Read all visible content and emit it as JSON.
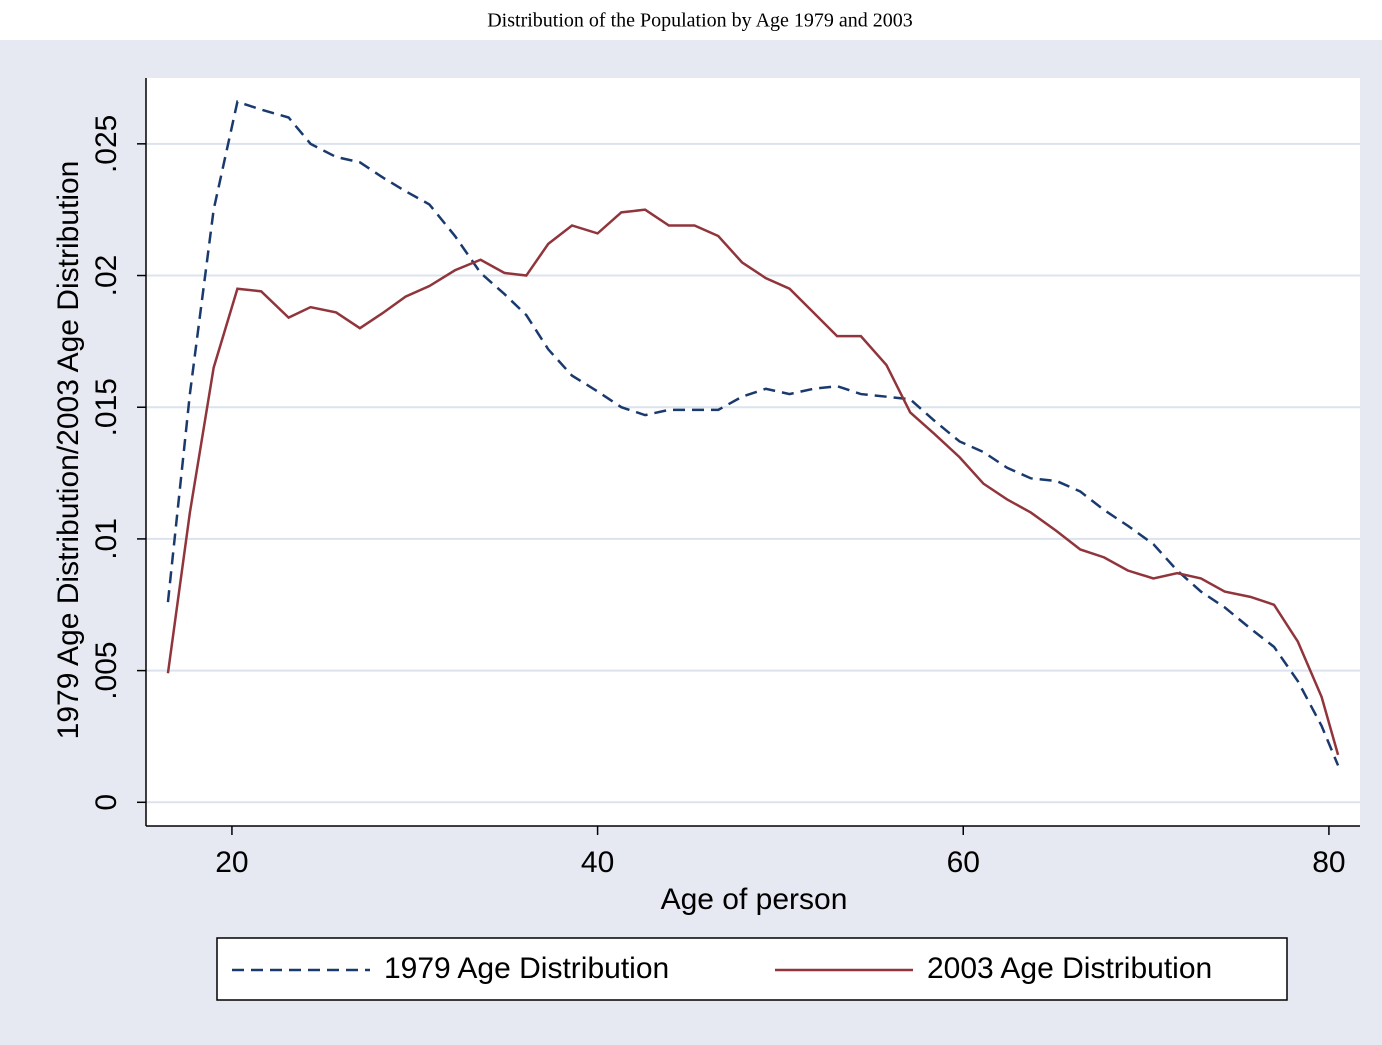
{
  "chart_data": {
    "type": "line",
    "title": "Distribution of the Population by Age 1979 and 2003",
    "x_label": "Age of person",
    "y_label": "1979 Age Distribution/2003 Age Distribution",
    "x": [
      16.5,
      17.7,
      19.0,
      20.3,
      21.6,
      23.1,
      24.3,
      25.7,
      27.0,
      28.3,
      29.5,
      30.8,
      32.2,
      33.6,
      34.9,
      36.1,
      37.3,
      38.6,
      40.0,
      41.3,
      42.6,
      43.9,
      45.3,
      46.6,
      47.9,
      49.2,
      50.5,
      51.8,
      53.1,
      54.4,
      55.8,
      57.1,
      58.4,
      59.8,
      61.1,
      62.4,
      63.7,
      65.1,
      66.4,
      67.7,
      69.0,
      70.4,
      71.7,
      73.0,
      74.3,
      75.7,
      77.0,
      78.3,
      79.6,
      80.5
    ],
    "series": [
      {
        "name": "1979 Age Distribution",
        "color": "#1a3a6e",
        "dash": true,
        "values": [
          0.0076,
          0.0155,
          0.0225,
          0.0266,
          0.0263,
          0.026,
          0.025,
          0.0245,
          0.0243,
          0.0237,
          0.0232,
          0.0227,
          0.0215,
          0.0201,
          0.0193,
          0.0185,
          0.0172,
          0.0162,
          0.0156,
          0.015,
          0.0147,
          0.0149,
          0.0149,
          0.0149,
          0.0154,
          0.0157,
          0.0155,
          0.0157,
          0.0158,
          0.0155,
          0.0154,
          0.0153,
          0.0145,
          0.0137,
          0.0133,
          0.0127,
          0.0123,
          0.0122,
          0.0118,
          0.0111,
          0.0105,
          0.0098,
          0.0088,
          0.008,
          0.0074,
          0.0066,
          0.0059,
          0.0046,
          0.0029,
          0.0014
        ]
      },
      {
        "name": "2003 Age Distribution",
        "color": "#90353b",
        "dash": false,
        "values": [
          0.0049,
          0.011,
          0.0165,
          0.0195,
          0.0194,
          0.0184,
          0.0188,
          0.0186,
          0.018,
          0.0186,
          0.0192,
          0.0196,
          0.0202,
          0.0206,
          0.0201,
          0.02,
          0.0212,
          0.0219,
          0.0216,
          0.0224,
          0.0225,
          0.0219,
          0.0219,
          0.0215,
          0.0205,
          0.0199,
          0.0195,
          0.0186,
          0.0177,
          0.0177,
          0.0166,
          0.0148,
          0.014,
          0.0131,
          0.0121,
          0.0115,
          0.011,
          0.0103,
          0.0096,
          0.0093,
          0.0088,
          0.0085,
          0.0087,
          0.0085,
          0.008,
          0.0078,
          0.0075,
          0.0061,
          0.004,
          0.0018
        ]
      }
    ],
    "xlim": [
      15.3,
      81.7
    ],
    "xticks": [
      20,
      40,
      60,
      80
    ],
    "ylim": [
      -0.0009,
      0.0275
    ],
    "yticks": [
      0,
      {
        "value": 0.005,
        "label": ".005"
      },
      {
        "value": 0.01,
        "label": ".01"
      },
      {
        "value": 0.015,
        "label": ".015"
      },
      {
        "value": 0.02,
        "label": ".02"
      },
      {
        "value": 0.025,
        "label": ".025"
      }
    ],
    "grid": true,
    "legend": "bottom"
  }
}
